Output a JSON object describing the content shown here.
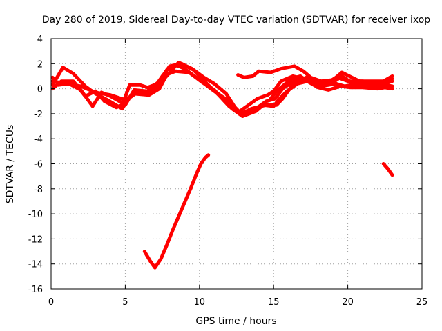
{
  "chart_data": {
    "type": "line",
    "title": "Day 280 of 2019, Sidereal Day-to-day VTEC variation (SDTVAR) for receiver ixop",
    "xlabel": "GPS time / hours",
    "ylabel": "SDTVAR / TECUs",
    "xlim": [
      0,
      25
    ],
    "ylim": [
      -16,
      4
    ],
    "xticks": [
      0,
      5,
      10,
      15,
      20,
      25
    ],
    "yticks": [
      -16,
      -14,
      -12,
      -10,
      -8,
      -6,
      -4,
      -2,
      0,
      2,
      4
    ],
    "grid": true,
    "color": "#ff0000",
    "series": [
      {
        "name": "sat-a",
        "points": [
          [
            0.1,
            0.3
          ],
          [
            0.8,
            1.7
          ],
          [
            1.5,
            1.2
          ],
          [
            2.3,
            0.2
          ],
          [
            3.0,
            -0.4
          ],
          [
            3.8,
            -0.9
          ],
          [
            4.8,
            -1.6
          ],
          [
            5.2,
            -0.8
          ],
          [
            5.8,
            -0.3
          ],
          [
            6.5,
            -0.3
          ],
          [
            7.2,
            0.2
          ],
          [
            7.8,
            1.5
          ],
          [
            8.4,
            1.9
          ],
          [
            9.0,
            1.6
          ],
          [
            10.0,
            0.7
          ],
          [
            11.0,
            -0.2
          ],
          [
            12.0,
            -1.0
          ],
          [
            12.8,
            -2.0
          ],
          [
            13.5,
            -1.6
          ],
          [
            14.5,
            -1.3
          ],
          [
            15.2,
            -1.3
          ],
          [
            15.6,
            -0.8
          ],
          [
            16.4,
            0.5
          ],
          [
            17.2,
            0.9
          ],
          [
            18.0,
            0.5
          ],
          [
            19.0,
            0.5
          ],
          [
            19.6,
            1.0
          ],
          [
            20.5,
            0.3
          ],
          [
            21.5,
            0.3
          ],
          [
            22.5,
            0.4
          ],
          [
            23.0,
            0.6
          ]
        ]
      },
      {
        "name": "sat-b",
        "points": [
          [
            0.1,
            0.6
          ],
          [
            1.0,
            0.4
          ],
          [
            2.0,
            0.2
          ],
          [
            3.0,
            -0.3
          ],
          [
            4.0,
            -0.5
          ],
          [
            5.0,
            -0.9
          ],
          [
            5.6,
            -0.4
          ],
          [
            6.6,
            -0.5
          ],
          [
            7.3,
            0.0
          ],
          [
            7.7,
            0.9
          ],
          [
            8.6,
            2.1
          ],
          [
            9.5,
            1.6
          ],
          [
            10.3,
            0.9
          ],
          [
            11.0,
            0.4
          ],
          [
            11.8,
            -0.4
          ],
          [
            12.4,
            -1.5
          ],
          [
            12.9,
            -2.1
          ],
          [
            13.8,
            -1.6
          ],
          [
            14.5,
            -1.0
          ],
          [
            15.1,
            -0.8
          ],
          [
            15.6,
            0.0
          ],
          [
            16.6,
            0.8
          ],
          [
            17.5,
            0.5
          ],
          [
            18.5,
            0.3
          ],
          [
            19.3,
            0.9
          ],
          [
            20.0,
            0.6
          ],
          [
            21.0,
            0.6
          ],
          [
            22.0,
            0.4
          ],
          [
            23.0,
            0.2
          ]
        ]
      },
      {
        "name": "sat-c",
        "points": [
          [
            0.1,
            0.0
          ],
          [
            0.7,
            0.6
          ],
          [
            1.5,
            0.6
          ],
          [
            2.3,
            -0.6
          ],
          [
            3.0,
            -0.2
          ],
          [
            3.6,
            -1.0
          ],
          [
            4.4,
            -1.5
          ],
          [
            4.8,
            -1.3
          ],
          [
            5.3,
            0.3
          ],
          [
            6.0,
            0.3
          ],
          [
            6.5,
            0.1
          ],
          [
            7.2,
            0.4
          ],
          [
            7.5,
            1.0
          ],
          [
            8.4,
            1.4
          ],
          [
            9.3,
            1.3
          ],
          [
            10.2,
            0.5
          ],
          [
            11.0,
            -0.1
          ],
          [
            11.7,
            -1.0
          ],
          [
            12.2,
            -1.6
          ],
          [
            12.9,
            -2.2
          ],
          [
            13.8,
            -1.8
          ],
          [
            14.3,
            -1.3
          ],
          [
            15.0,
            -1.4
          ],
          [
            15.4,
            -0.8
          ],
          [
            15.9,
            -0.2
          ],
          [
            16.6,
            0.4
          ],
          [
            17.3,
            0.6
          ],
          [
            18.2,
            0.2
          ],
          [
            19.2,
            0.4
          ],
          [
            19.8,
            0.2
          ],
          [
            20.6,
            0.4
          ],
          [
            22.0,
            0.2
          ],
          [
            23.0,
            0.0
          ]
        ]
      },
      {
        "name": "sat-d",
        "points": [
          [
            0.1,
            0.9
          ],
          [
            0.5,
            0.3
          ],
          [
            1.2,
            0.4
          ],
          [
            2.0,
            -0.1
          ],
          [
            2.8,
            -1.4
          ],
          [
            3.4,
            -0.3
          ],
          [
            4.0,
            -0.6
          ],
          [
            4.6,
            -1.0
          ],
          [
            5.0,
            -1.3
          ],
          [
            5.6,
            -0.1
          ],
          [
            6.5,
            -0.2
          ],
          [
            7.2,
            0.5
          ],
          [
            8.0,
            1.8
          ],
          [
            8.8,
            2.0
          ],
          [
            9.6,
            1.5
          ],
          [
            10.5,
            0.4
          ],
          [
            11.3,
            -0.5
          ],
          [
            12.0,
            -1.4
          ],
          [
            12.6,
            -1.9
          ],
          [
            13.2,
            -1.4
          ],
          [
            13.9,
            -0.8
          ],
          [
            14.6,
            -0.5
          ],
          [
            15.0,
            -0.2
          ],
          [
            15.5,
            0.6
          ],
          [
            16.3,
            1.0
          ],
          [
            17.0,
            0.8
          ],
          [
            18.0,
            0.3
          ],
          [
            18.8,
            0.6
          ],
          [
            19.5,
            1.1
          ],
          [
            20.3,
            0.4
          ],
          [
            21.3,
            0.2
          ],
          [
            22.3,
            0.5
          ],
          [
            23.0,
            0.8
          ]
        ]
      },
      {
        "name": "sat-e",
        "points": [
          [
            12.6,
            1.1
          ],
          [
            13.0,
            0.9
          ],
          [
            13.6,
            1.0
          ],
          [
            14.0,
            1.4
          ],
          [
            14.8,
            1.3
          ],
          [
            15.5,
            1.6
          ],
          [
            16.4,
            1.8
          ],
          [
            17.0,
            1.4
          ],
          [
            17.5,
            0.9
          ],
          [
            18.2,
            0.6
          ],
          [
            19.0,
            0.7
          ],
          [
            19.6,
            1.3
          ],
          [
            20.1,
            1.0
          ],
          [
            20.8,
            0.6
          ],
          [
            21.6,
            0.6
          ],
          [
            22.4,
            0.6
          ],
          [
            23.0,
            1.0
          ]
        ]
      },
      {
        "name": "sat-f",
        "points": [
          [
            14.8,
            -0.8
          ],
          [
            15.2,
            -0.2
          ],
          [
            15.6,
            0.2
          ],
          [
            16.2,
            0.8
          ],
          [
            16.8,
            1.0
          ],
          [
            17.4,
            0.5
          ],
          [
            18.0,
            0.1
          ],
          [
            18.7,
            -0.1
          ],
          [
            19.5,
            0.2
          ],
          [
            20.2,
            0.1
          ],
          [
            21.0,
            0.1
          ],
          [
            22.0,
            0.0
          ],
          [
            23.0,
            0.2
          ]
        ]
      },
      {
        "name": "sat-g",
        "points": [
          [
            6.3,
            -13.0
          ],
          [
            6.7,
            -13.8
          ],
          [
            7.0,
            -14.3
          ],
          [
            7.4,
            -13.6
          ],
          [
            7.8,
            -12.5
          ],
          [
            8.2,
            -11.3
          ],
          [
            8.6,
            -10.2
          ],
          [
            9.0,
            -9.1
          ],
          [
            9.4,
            -8.0
          ],
          [
            9.8,
            -6.8
          ],
          [
            10.1,
            -6.0
          ],
          [
            10.4,
            -5.5
          ],
          [
            10.6,
            -5.3
          ]
        ]
      },
      {
        "name": "sat-h",
        "points": [
          [
            22.4,
            -6.0
          ],
          [
            22.7,
            -6.4
          ],
          [
            23.0,
            -6.9
          ]
        ]
      }
    ]
  }
}
